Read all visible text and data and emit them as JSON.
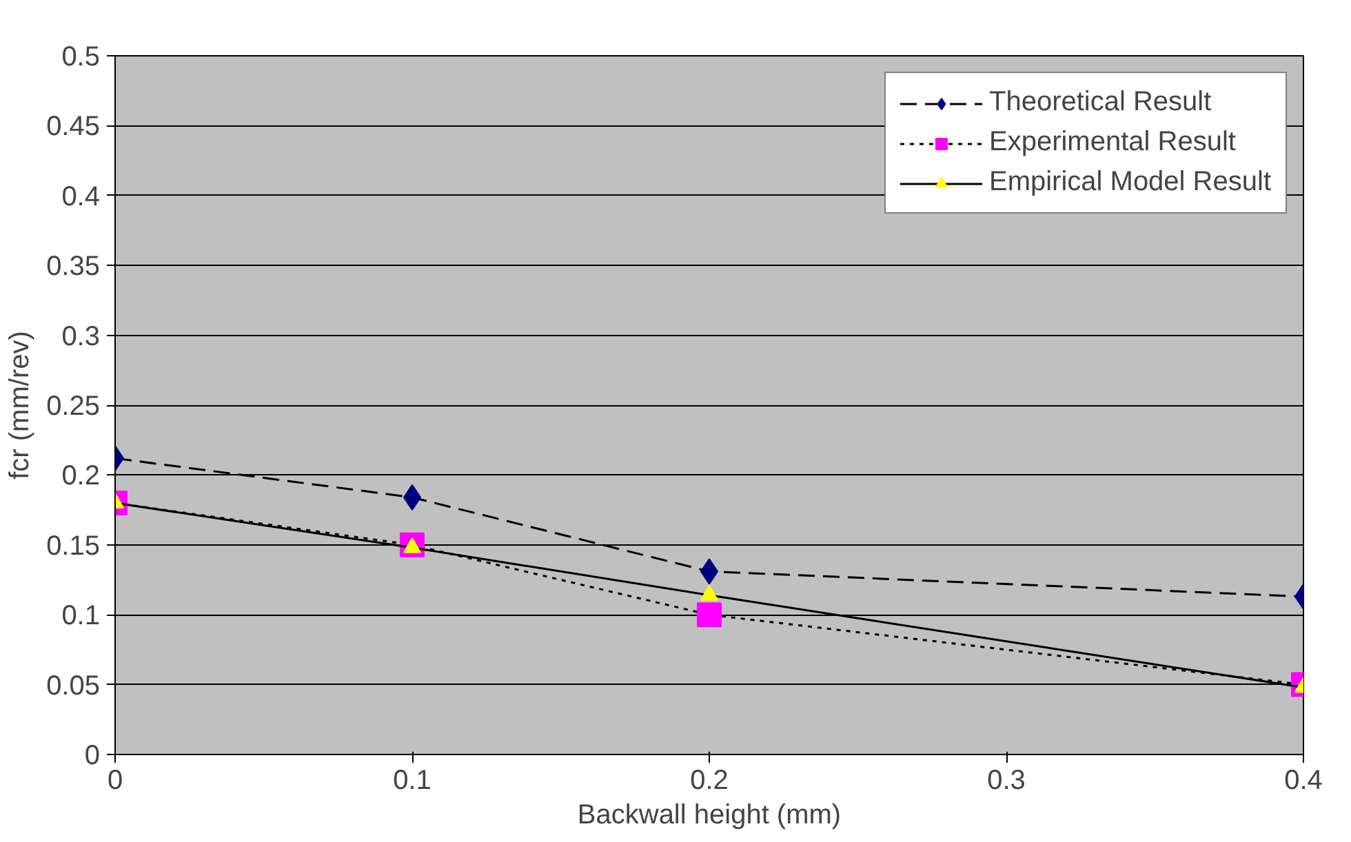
{
  "chart_data": {
    "type": "line",
    "xlabel": "Backwall height (mm)",
    "ylabel": "fcr (mm/rev)",
    "x": [
      0,
      0.1,
      0.2,
      0.4
    ],
    "series": [
      {
        "name": "Theoretical Result",
        "color": "#000080",
        "marker": "diamond",
        "line_style": "dashed",
        "values": [
          0.212,
          0.184,
          0.131,
          0.113
        ]
      },
      {
        "name": "Experimental Result",
        "color": "#ff00ff",
        "marker": "square",
        "line_style": "dotted",
        "values": [
          0.18,
          0.15,
          0.1,
          0.05
        ]
      },
      {
        "name": "Empirical Model Result",
        "color": "#ffff00",
        "marker": "triangle",
        "line_style": "solid",
        "values": [
          0.18,
          0.148,
          0.114,
          0.048
        ]
      }
    ],
    "xlim": [
      0,
      0.4
    ],
    "xticks": [
      0,
      0.1,
      0.2,
      0.3,
      0.4
    ],
    "ylim": [
      0,
      0.5
    ],
    "yticks": [
      0,
      0.05,
      0.1,
      0.15,
      0.2,
      0.25,
      0.3,
      0.35,
      0.4,
      0.45,
      0.5
    ],
    "grid": "y",
    "legend": "top right"
  }
}
